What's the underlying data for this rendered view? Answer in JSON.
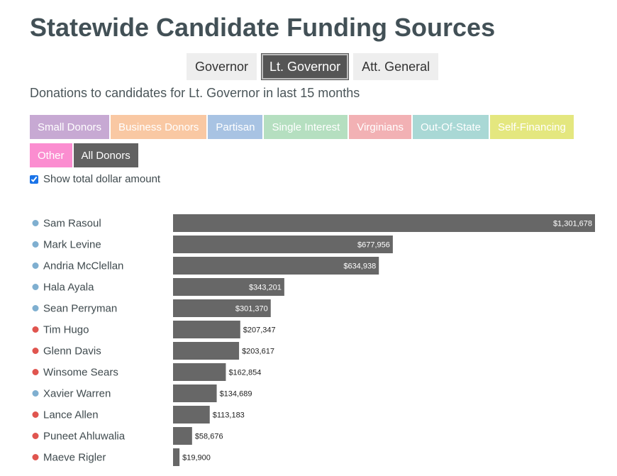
{
  "page": {
    "title": "Statewide Candidate Funding Sources",
    "subtitle": "Donations to candidates for Lt. Governor in last 15 months",
    "show_total_label": "Show total dollar amount",
    "show_total_checked": true
  },
  "office_tabs": [
    {
      "label": "Governor",
      "active": false
    },
    {
      "label": "Lt. Governor",
      "active": true
    },
    {
      "label": "Att. General",
      "active": false
    }
  ],
  "filters": [
    {
      "label": "Small Donors",
      "color": "#c7a9d3"
    },
    {
      "label": "Business Donors",
      "color": "#f9c8a3"
    },
    {
      "label": "Partisan",
      "color": "#a8c3e3"
    },
    {
      "label": "Single Interest",
      "color": "#b5dfc0"
    },
    {
      "label": "Virginians",
      "color": "#f2b1b4"
    },
    {
      "label": "Out-Of-State",
      "color": "#a9d8d5"
    },
    {
      "label": "Self-Financing",
      "color": "#e4e77f"
    },
    {
      "label": "Other",
      "color": "#fb8dd0"
    },
    {
      "label": "All Donors",
      "color": "#616161"
    }
  ],
  "party_colors": {
    "D": "#7fafd0",
    "R": "#e0554f"
  },
  "bar_color": "#676767",
  "chart_data": {
    "type": "bar",
    "orientation": "horizontal",
    "categories": [
      "Sam Rasoul",
      "Mark Levine",
      "Andria McClellan",
      "Hala Ayala",
      "Sean Perryman",
      "Tim Hugo",
      "Glenn Davis",
      "Winsome Sears",
      "Xavier Warren",
      "Lance Allen",
      "Puneet Ahluwalia",
      "Maeve Rigler"
    ],
    "values": [
      1301678,
      677956,
      634938,
      343201,
      301370,
      207347,
      203617,
      162854,
      134689,
      113183,
      58676,
      19900
    ],
    "value_labels": [
      "$1,301,678",
      "$677,956",
      "$634,938",
      "$343,201",
      "$301,370",
      "$207,347",
      "$203,617",
      "$162,854",
      "$134,689",
      "$113,183",
      "$58,676",
      "$19,900"
    ],
    "party": [
      "D",
      "D",
      "D",
      "D",
      "D",
      "R",
      "R",
      "R",
      "D",
      "R",
      "R",
      "R"
    ],
    "xlim": [
      0,
      1301678
    ]
  }
}
